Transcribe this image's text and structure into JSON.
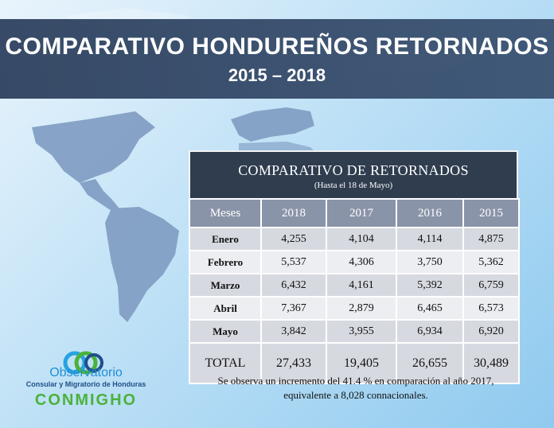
{
  "header": {
    "title": "COMPARATIVO HONDUREÑOS RETORNADOS",
    "subtitle": "2015 – 2018"
  },
  "table": {
    "title": "COMPARATIVO DE RETORNADOS",
    "note": "(Hasta el 18 de Mayo)",
    "columns": [
      "Meses",
      "2018",
      "2017",
      "2016",
      "2015"
    ],
    "rows": [
      {
        "month": "Enero",
        "values": [
          "4,255",
          "4,104",
          "4,114",
          "4,875"
        ]
      },
      {
        "month": "Febrero",
        "values": [
          "5,537",
          "4,306",
          "3,750",
          "5,362"
        ]
      },
      {
        "month": "Marzo",
        "values": [
          "6,432",
          "4,161",
          "5,392",
          "6,759"
        ]
      },
      {
        "month": "Abril",
        "values": [
          "7,367",
          "2,879",
          "6,465",
          "6,573"
        ]
      },
      {
        "month": "Mayo",
        "values": [
          "3,842",
          "3,955",
          "6,934",
          "6,920"
        ]
      }
    ],
    "total": {
      "label": "TOTAL",
      "values": [
        "27,433",
        "19,405",
        "26,655",
        "30,489"
      ]
    }
  },
  "footnote": {
    "line1": "Se observa un incremento del 41.4 % en comparación al año 2017,",
    "line2": "equivalente a 8,028 connacionales."
  },
  "logo": {
    "line1": "Observatorio",
    "line2": "Consular y Migratorio de Honduras",
    "line3": "CONMIGHO"
  }
}
